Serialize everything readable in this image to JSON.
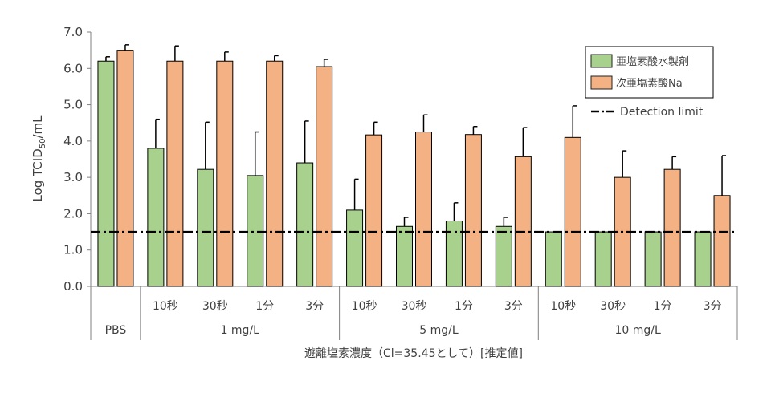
{
  "chart_data": {
    "type": "bar",
    "ylabel": "Log TCID50/mL",
    "ylabel_main": "Log TCID",
    "ylabel_sub": "50",
    "ylabel_tail": "/mL",
    "xlabel": "遊離塩素濃度（Cl=35.45として）[推定値]",
    "ylim": [
      0,
      7
    ],
    "yticks": [
      "0.0",
      "1.0",
      "2.0",
      "3.0",
      "4.0",
      "5.0",
      "6.0",
      "7.0"
    ],
    "grid": false,
    "legend_position": "top-right",
    "detection_limit": {
      "value": 1.5,
      "label": "Detection limit"
    },
    "categories": [
      "",
      "10秒",
      "30秒",
      "1分",
      "3分",
      "10秒",
      "30秒",
      "1分",
      "3分",
      "10秒",
      "30秒",
      "1分",
      "3分"
    ],
    "groups": [
      {
        "label": "PBS",
        "start": 0,
        "count": 1
      },
      {
        "label": "1 mg/L",
        "start": 1,
        "count": 4
      },
      {
        "label": "5 mg/L",
        "start": 5,
        "count": 4
      },
      {
        "label": "10 mg/L",
        "start": 9,
        "count": 4
      }
    ],
    "series": [
      {
        "name": "亜塩素酸水製剤",
        "color": "#a9d18e",
        "values": [
          6.2,
          3.8,
          3.22,
          3.05,
          3.4,
          2.1,
          1.65,
          1.8,
          1.65,
          1.5,
          1.5,
          1.5,
          1.5
        ],
        "errors": [
          0.12,
          0.8,
          1.3,
          1.2,
          1.15,
          0.85,
          0.25,
          0.5,
          0.25,
          0,
          0,
          0,
          0
        ]
      },
      {
        "name": "次亜塩素酸Na",
        "color": "#f4b183",
        "values": [
          6.5,
          6.2,
          6.2,
          6.2,
          6.05,
          4.17,
          4.25,
          4.18,
          3.57,
          4.1,
          3.0,
          3.22,
          2.5
        ],
        "errors": [
          0.15,
          0.42,
          0.25,
          0.15,
          0.2,
          0.35,
          0.47,
          0.22,
          0.8,
          0.87,
          0.73,
          0.35,
          1.1
        ]
      }
    ]
  }
}
